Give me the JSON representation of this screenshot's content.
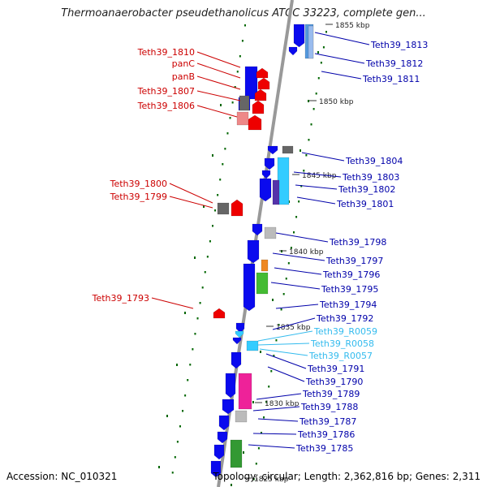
{
  "title": "Thermoanaerobacter pseudethanolicus ATCC 33223, complete gen...",
  "accession": "Accession: NC_010321",
  "topology": "Topology: circular; Length: 2,362,816 bp; Genes: 2,311",
  "colors": {
    "backbone": "#808080",
    "forward_gene": "#0000ee",
    "reverse_gene": "#ee0000",
    "rna": "#33ccff",
    "left_label": "#cc0000",
    "right_label": "#0000aa",
    "rna_label": "#33bbee",
    "tick": "#006600"
  },
  "scale_labels": [
    "1855 kbp",
    "1850 kbp",
    "1845 kbp",
    "1840 kbp",
    "1835 kbp",
    "1830 kbp",
    "1825 kbp"
  ],
  "left_labels": [
    "Teth39_1810",
    "panC",
    "panB",
    "Teth39_1807",
    "Teth39_1806",
    "Teth39_1800",
    "Teth39_1799",
    "Teth39_1793"
  ],
  "right_labels": [
    "Teth39_1813",
    "Teth39_1812",
    "Teth39_1811",
    "Teth39_1804",
    "Teth39_1803",
    "Teth39_1802",
    "Teth39_1801",
    "Teth39_1798",
    "Teth39_1797",
    "Teth39_1796",
    "Teth39_1795",
    "Teth39_1794",
    "Teth39_1792",
    "Teth39_R0059",
    "Teth39_R0058",
    "Teth39_R0057",
    "Teth39_1791",
    "Teth39_1790",
    "Teth39_1789",
    "Teth39_1788",
    "Teth39_1787",
    "Teth39_1786",
    "Teth39_1785"
  ]
}
